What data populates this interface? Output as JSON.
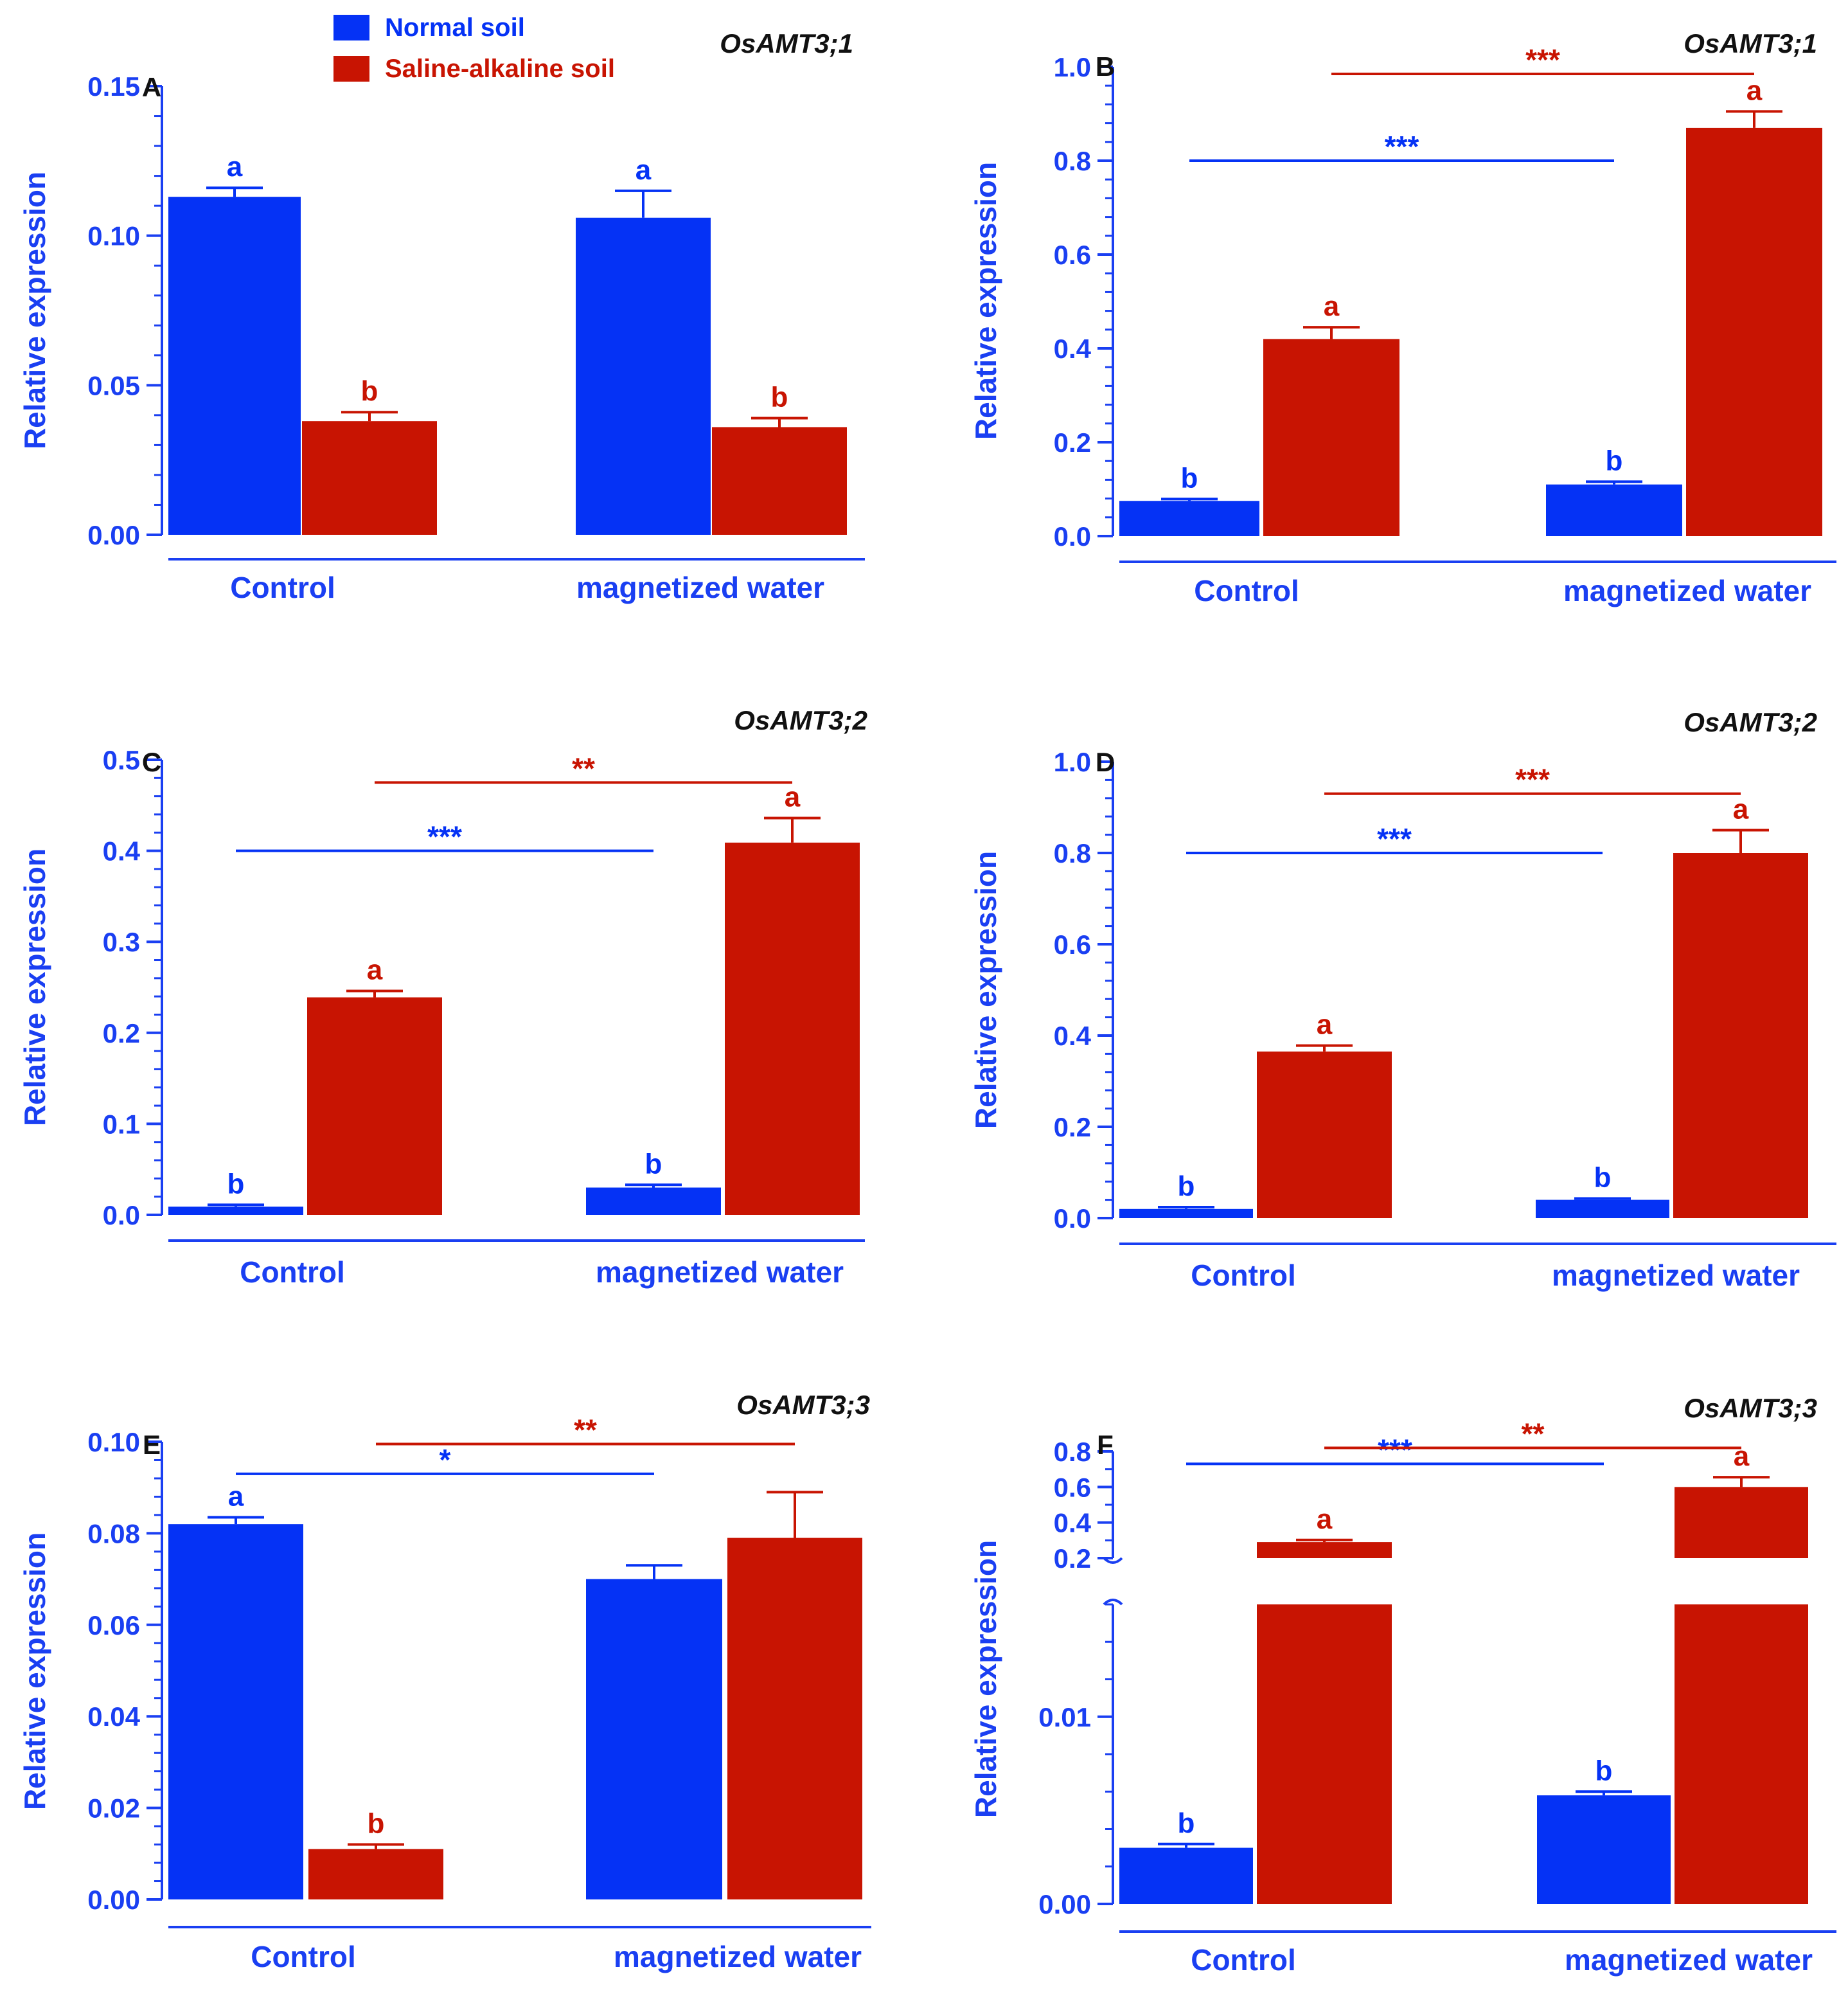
{
  "legend": {
    "normal": "Normal soil",
    "saline": "Saline-alkaline soil"
  },
  "colors": {
    "normal": "#0532f5",
    "saline": "#c81402",
    "axis": "#1a3ff2",
    "text_dark": "#111111"
  },
  "chart_data": [
    {
      "panel": "A",
      "gene": "OsAMT3;1",
      "type": "bar",
      "categories": [
        "Control",
        "magnetized water"
      ],
      "ylabel": "Relative expression",
      "ylim": [
        0,
        0.15
      ],
      "yticks": [
        "0.00",
        "0.05",
        "0.10",
        "0.15"
      ],
      "ytick_values": [
        0,
        0.05,
        0.1,
        0.15
      ],
      "series": [
        {
          "name": "Normal soil",
          "values": [
            0.113,
            0.106
          ],
          "errors": [
            0.003,
            0.009
          ],
          "letters": [
            "a",
            "a"
          ]
        },
        {
          "name": "Saline-alkaline soil",
          "values": [
            0.038,
            0.036
          ],
          "errors": [
            0.003,
            0.003
          ],
          "letters": [
            "b",
            "b"
          ]
        }
      ],
      "brackets": []
    },
    {
      "panel": "B",
      "gene": "OsAMT3;1",
      "type": "bar",
      "categories": [
        "Control",
        "magnetized water"
      ],
      "ylabel": "Relative expression",
      "ylim": [
        0,
        1.0
      ],
      "yticks": [
        "0.0",
        "0.2",
        "0.4",
        "0.6",
        "0.8",
        "1.0"
      ],
      "ytick_values": [
        0,
        0.2,
        0.4,
        0.6,
        0.8,
        1.0
      ],
      "series": [
        {
          "name": "Normal soil",
          "values": [
            0.075,
            0.11
          ],
          "errors": [
            0.004,
            0.006
          ],
          "letters": [
            "b",
            "b"
          ]
        },
        {
          "name": "Saline-alkaline soil",
          "values": [
            0.42,
            0.87
          ],
          "errors": [
            0.025,
            0.035
          ],
          "letters": [
            "a",
            "a"
          ]
        }
      ],
      "brackets": [
        {
          "series": 0,
          "y": 0.8,
          "label": "***"
        },
        {
          "series": 1,
          "y": 0.985,
          "label": "***"
        }
      ]
    },
    {
      "panel": "C",
      "gene": "OsAMT3;2",
      "type": "bar",
      "categories": [
        "Control",
        "magnetized water"
      ],
      "ylabel": "Relative expression",
      "ylim": [
        0,
        0.5
      ],
      "yticks": [
        "0.0",
        "0.1",
        "0.2",
        "0.3",
        "0.4",
        "0.5"
      ],
      "ytick_values": [
        0,
        0.1,
        0.2,
        0.3,
        0.4,
        0.5
      ],
      "series": [
        {
          "name": "Normal soil",
          "values": [
            0.009,
            0.03
          ],
          "errors": [
            0.002,
            0.003
          ],
          "letters": [
            "b",
            "b"
          ]
        },
        {
          "name": "Saline-alkaline soil",
          "values": [
            0.239,
            0.409
          ],
          "errors": [
            0.007,
            0.027
          ],
          "letters": [
            "a",
            "a"
          ]
        }
      ],
      "brackets": [
        {
          "series": 0,
          "y": 0.4,
          "label": "***"
        },
        {
          "series": 1,
          "y": 0.475,
          "label": "**"
        }
      ]
    },
    {
      "panel": "D",
      "gene": "OsAMT3;2",
      "type": "bar",
      "categories": [
        "Control",
        "magnetized water"
      ],
      "ylabel": "Relative expression",
      "ylim": [
        0,
        1.0
      ],
      "yticks": [
        "0.0",
        "0.2",
        "0.4",
        "0.6",
        "0.8",
        "1.0"
      ],
      "ytick_values": [
        0,
        0.2,
        0.4,
        0.6,
        0.8,
        1.0
      ],
      "series": [
        {
          "name": "Normal soil",
          "values": [
            0.02,
            0.04
          ],
          "errors": [
            0.004,
            0.003
          ],
          "letters": [
            "b",
            "b"
          ]
        },
        {
          "name": "Saline-alkaline soil",
          "values": [
            0.365,
            0.8
          ],
          "errors": [
            0.013,
            0.05
          ],
          "letters": [
            "a",
            "a"
          ]
        }
      ],
      "brackets": [
        {
          "series": 0,
          "y": 0.8,
          "label": "***"
        },
        {
          "series": 1,
          "y": 0.93,
          "label": "***"
        }
      ]
    },
    {
      "panel": "E",
      "gene": "OsAMT3;3",
      "type": "bar",
      "categories": [
        "Control",
        "magnetized water"
      ],
      "ylabel": "Relative expression",
      "ylim": [
        0,
        0.1
      ],
      "yticks": [
        "0.00",
        "0.02",
        "0.04",
        "0.06",
        "0.08",
        "0.10"
      ],
      "ytick_values": [
        0,
        0.02,
        0.04,
        0.06,
        0.08,
        0.1
      ],
      "series": [
        {
          "name": "Normal soil",
          "values": [
            0.082,
            0.07
          ],
          "errors": [
            0.0015,
            0.003
          ],
          "letters": [
            "a",
            ""
          ]
        },
        {
          "name": "Saline-alkaline soil",
          "values": [
            0.011,
            0.079
          ],
          "errors": [
            0.001,
            0.01
          ],
          "letters": [
            "b",
            ""
          ]
        }
      ],
      "brackets": [
        {
          "series": 0,
          "y": 0.093,
          "label": "*"
        },
        {
          "series": 1,
          "y": 0.0995,
          "label": "**"
        }
      ]
    },
    {
      "panel": "F",
      "gene": "OsAMT3;3",
      "type": "bar",
      "categories": [
        "Control",
        "magnetized water"
      ],
      "ylabel": "Relative expression",
      "broken_axis": {
        "lower": [
          0,
          0.016
        ],
        "upper": [
          0.2,
          0.8
        ]
      },
      "yticks": [
        "0.00",
        "0.01",
        "0.2",
        "0.4",
        "0.6",
        "0.8"
      ],
      "ytick_values": [
        0,
        0.01,
        0.2,
        0.4,
        0.6,
        0.8
      ],
      "series": [
        {
          "name": "Normal soil",
          "values": [
            0.003,
            0.0058
          ],
          "errors": [
            0.0002,
            0.0002
          ],
          "letters": [
            "b",
            "b"
          ]
        },
        {
          "name": "Saline-alkaline soil",
          "values": [
            0.29,
            0.6
          ],
          "errors": [
            0.012,
            0.055
          ],
          "letters": [
            "a",
            "a"
          ]
        }
      ],
      "brackets": [
        {
          "series": 0,
          "y": 0.73,
          "label": "***"
        },
        {
          "series": 1,
          "y": 0.82,
          "label": "**"
        }
      ]
    }
  ]
}
